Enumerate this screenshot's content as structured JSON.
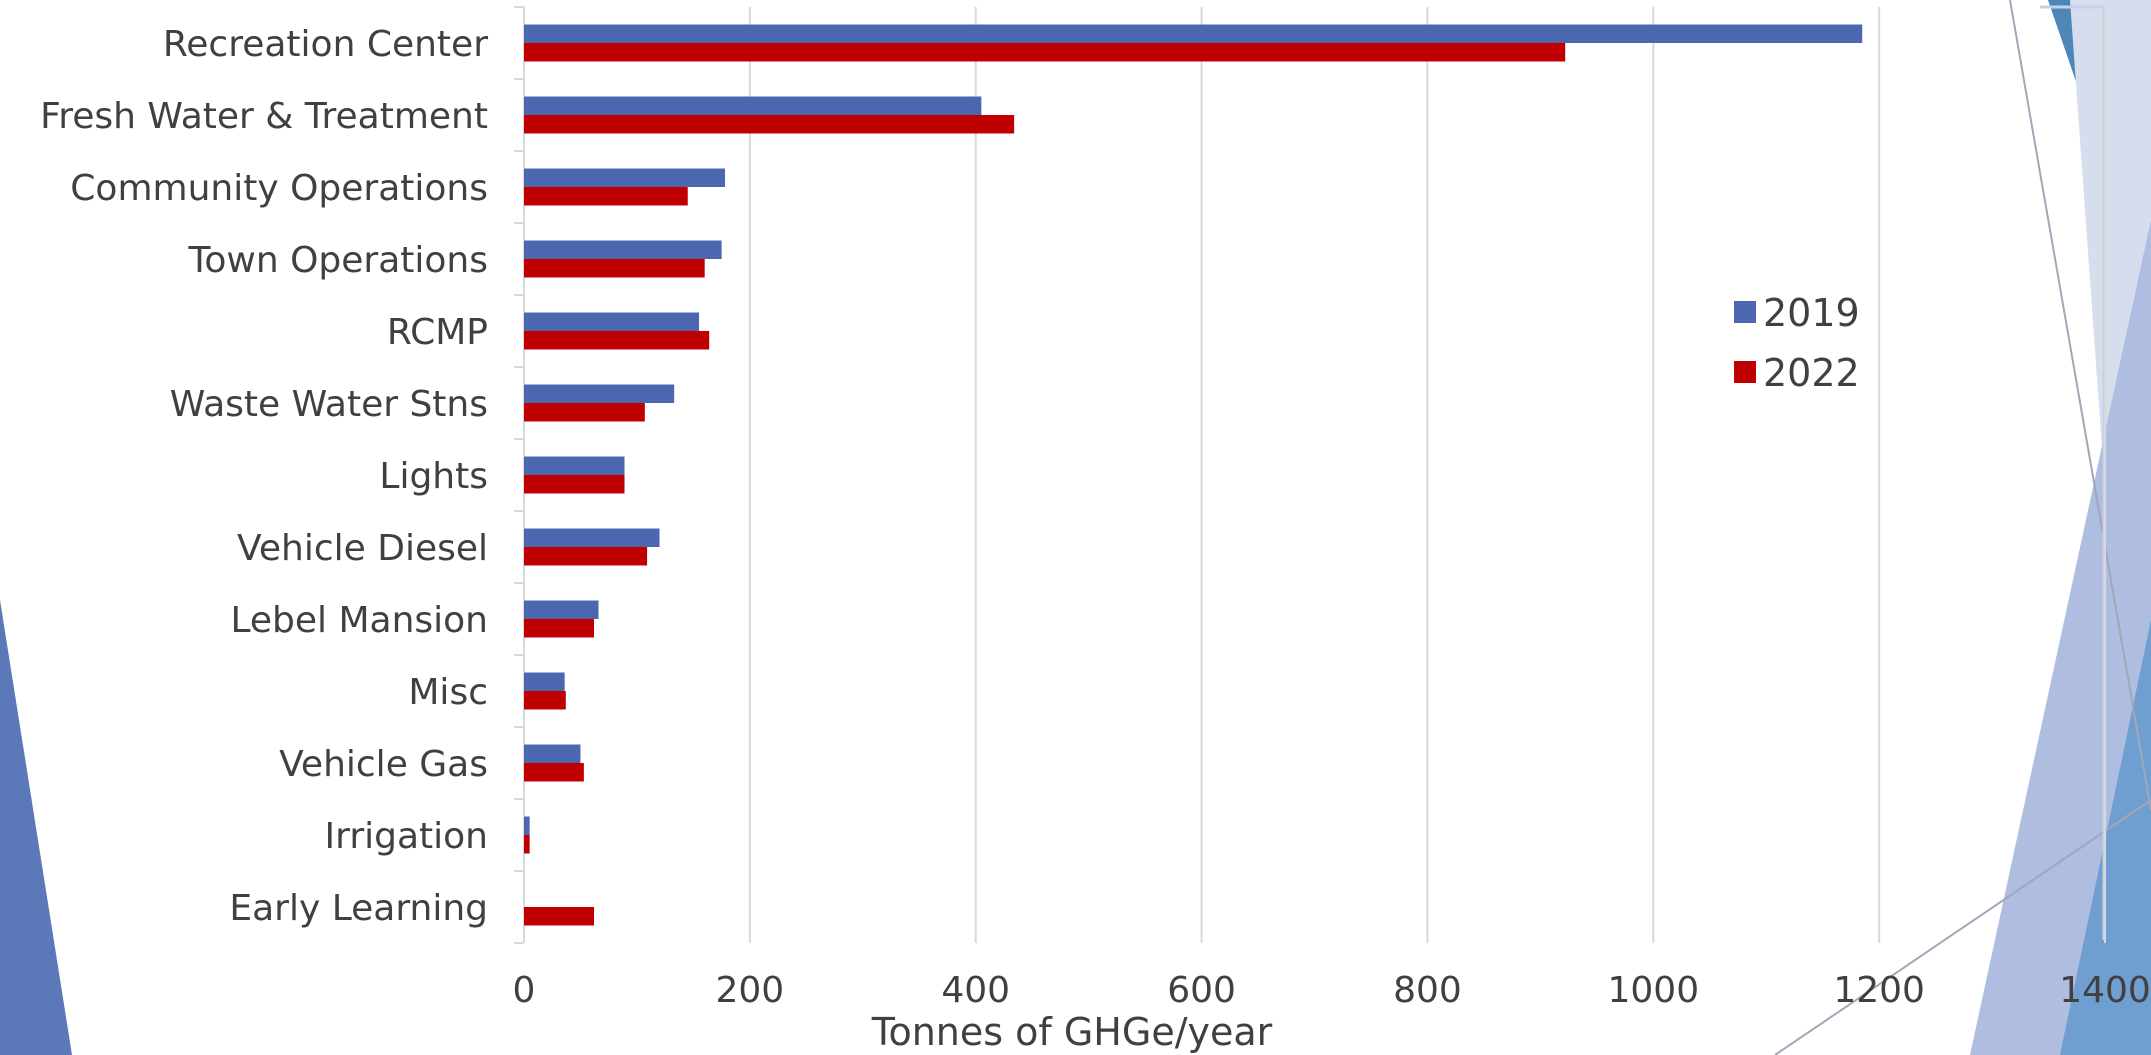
{
  "chart_data": {
    "type": "bar",
    "orientation": "horizontal",
    "categories": [
      "Recreation Center",
      "Fresh Water & Treatment",
      "Community Operations",
      "Town Operations",
      "RCMP",
      "Waste Water Stns",
      "Lights",
      "Vehicle Diesel",
      "Lebel Mansion",
      "Misc",
      "Vehicle Gas",
      "Irrigation",
      "Early Learning"
    ],
    "series": [
      {
        "name": "2019",
        "color": "#4a67b0",
        "values": [
          1185,
          405,
          178,
          175,
          155,
          133,
          89,
          120,
          66,
          36,
          50,
          5,
          0
        ]
      },
      {
        "name": "2022",
        "color": "#c00000",
        "values": [
          922,
          434,
          145,
          160,
          164,
          107,
          89,
          109,
          62,
          37,
          53,
          5,
          62
        ]
      }
    ],
    "title": "",
    "xlabel": "Tonnes of GHGe/year",
    "ylabel": "",
    "xlim": [
      0,
      1400
    ],
    "xticks": [
      "0",
      "200",
      "400",
      "600",
      "800",
      "1000",
      "1200",
      "1400"
    ],
    "grid": true,
    "legend_position": "right"
  }
}
